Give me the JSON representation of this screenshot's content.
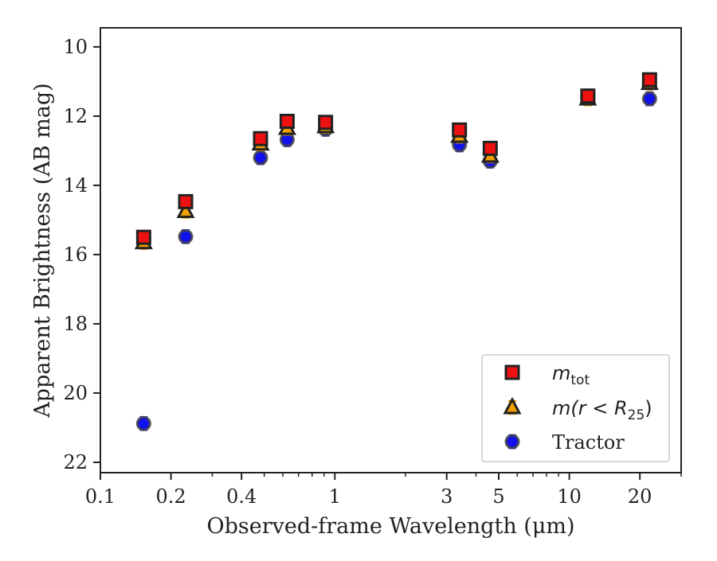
{
  "chart_data": {
    "type": "scatter",
    "title": "",
    "xlabel": "Observed-frame Wavelength (μm)",
    "ylabel": "Apparent Brightness (AB mag)",
    "x_scale": "log",
    "xlim": [
      0.1,
      30
    ],
    "ylim": [
      22.3,
      9.45
    ],
    "y_inverted": true,
    "grid": false,
    "legend_position": "lower-right",
    "x_ticks": [
      {
        "value": 0.1,
        "label": "0.1"
      },
      {
        "value": 0.2,
        "label": "0.2"
      },
      {
        "value": 0.4,
        "label": "0.4"
      },
      {
        "value": 1,
        "label": "1"
      },
      {
        "value": 3,
        "label": "3"
      },
      {
        "value": 5,
        "label": "5"
      },
      {
        "value": 10,
        "label": "10"
      },
      {
        "value": 20,
        "label": "20"
      }
    ],
    "y_ticks": [
      {
        "value": 10,
        "label": "10"
      },
      {
        "value": 12,
        "label": "12"
      },
      {
        "value": 14,
        "label": "14"
      },
      {
        "value": 16,
        "label": "16"
      },
      {
        "value": 18,
        "label": "18"
      },
      {
        "value": 20,
        "label": "20"
      },
      {
        "value": 22,
        "label": "22"
      }
    ],
    "series": [
      {
        "name": "m_tot",
        "legend_label": {
          "main": "m",
          "sub": "tot"
        },
        "marker": "square",
        "color": "#ee1111",
        "edge_color": "#222222",
        "errorbar_color": "#cc0000",
        "x": [
          0.153,
          0.231,
          0.482,
          0.626,
          0.913,
          3.4,
          4.6,
          12.0,
          22.0
        ],
        "y": [
          15.5,
          14.47,
          12.65,
          12.15,
          12.18,
          12.4,
          12.93,
          11.42,
          10.95
        ]
      },
      {
        "name": "m(r < R25)",
        "legend_label": {
          "main": "m(r < R",
          "sub": "25",
          "end": ")"
        },
        "marker": "triangle",
        "color": "#f0a000",
        "edge_color": "#222222",
        "errorbar_color": "#e8a000",
        "x": [
          0.153,
          0.231,
          0.482,
          0.626,
          0.913,
          3.4,
          4.6,
          12.0,
          22.0
        ],
        "y": [
          15.65,
          14.75,
          12.8,
          12.35,
          12.3,
          12.58,
          13.15,
          11.5,
          11.05
        ]
      },
      {
        "name": "Tractor",
        "legend_label": {
          "main": "Tractor"
        },
        "marker": "circle",
        "color": "#1111ee",
        "edge_color": "#444444",
        "errorbar_color": "#3333ee",
        "x": [
          0.153,
          0.231,
          0.482,
          0.626,
          0.913,
          3.4,
          4.6,
          12.0,
          22.0
        ],
        "y": [
          20.88,
          15.48,
          13.2,
          12.68,
          12.38,
          12.83,
          13.3,
          11.42,
          11.5
        ]
      }
    ]
  }
}
